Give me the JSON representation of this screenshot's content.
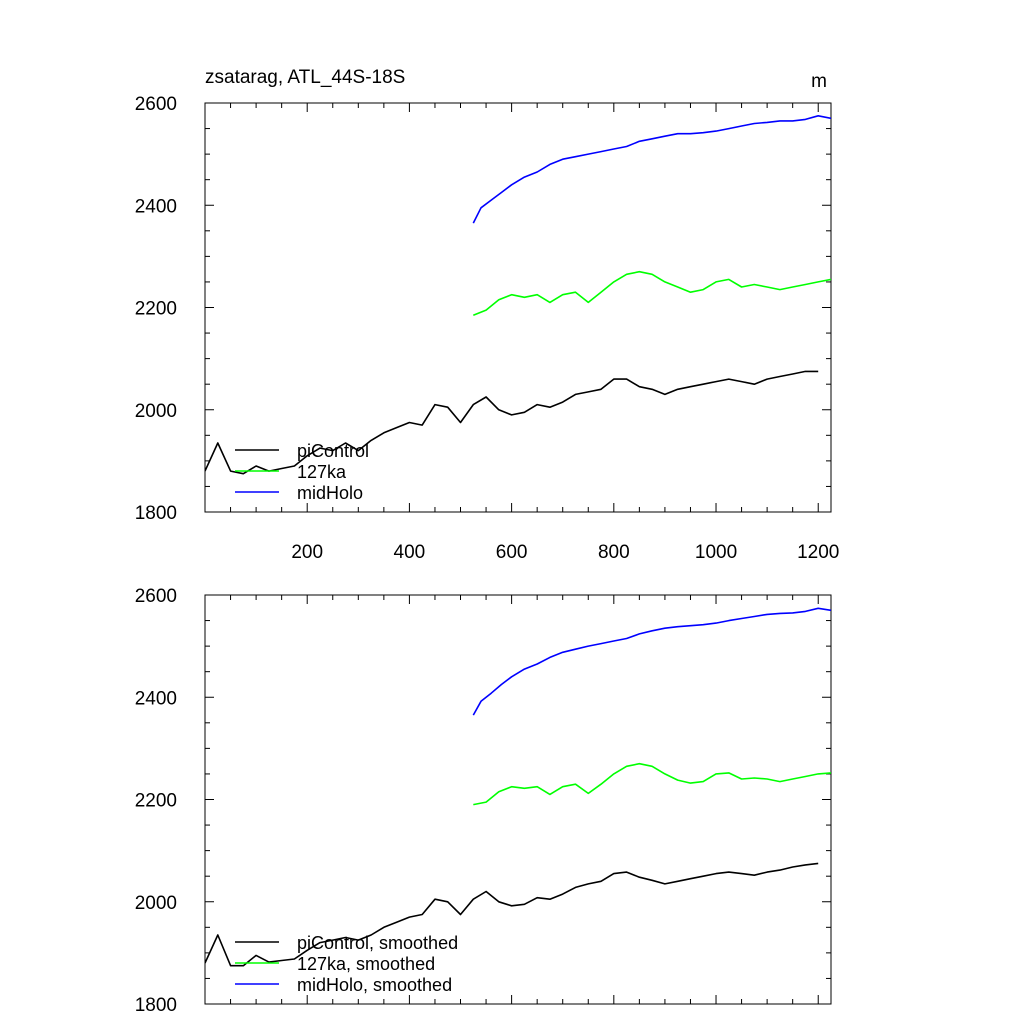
{
  "chart_data": [
    {
      "type": "line",
      "title": "zsatarag, ATL_44S-18S",
      "units": "m",
      "xlim": [
        0,
        1225
      ],
      "ylim": [
        1800,
        2600
      ],
      "xticks": [
        200,
        400,
        600,
        800,
        1000,
        1200
      ],
      "xtick_labels": [
        "200",
        "400",
        "600",
        "800",
        "1000",
        "1200"
      ],
      "yticks": [
        1800,
        2000,
        2200,
        2400,
        2600
      ],
      "ytick_labels": [
        "1800",
        "2000",
        "2200",
        "2400",
        "2600"
      ],
      "legend_position": "bottom-left",
      "series": [
        {
          "name": "piControl",
          "color": "#000000",
          "x": [
            0,
            25,
            50,
            75,
            100,
            125,
            150,
            175,
            200,
            225,
            250,
            275,
            300,
            325,
            350,
            375,
            400,
            425,
            450,
            475,
            500,
            525,
            550,
            575,
            600,
            625,
            650,
            675,
            700,
            725,
            750,
            775,
            800,
            825,
            850,
            875,
            900,
            925,
            950,
            975,
            1000,
            1025,
            1050,
            1075,
            1100,
            1125,
            1150,
            1175,
            1200
          ],
          "y": [
            1880,
            1935,
            1880,
            1875,
            1890,
            1880,
            1885,
            1890,
            1910,
            1925,
            1920,
            1935,
            1920,
            1940,
            1955,
            1965,
            1975,
            1970,
            2010,
            2005,
            1975,
            2010,
            2025,
            2000,
            1990,
            1995,
            2010,
            2005,
            2015,
            2030,
            2035,
            2040,
            2060,
            2060,
            2045,
            2040,
            2030,
            2040,
            2045,
            2050,
            2055,
            2060,
            2055,
            2050,
            2060,
            2065,
            2070,
            2075,
            2075
          ]
        },
        {
          "name": "127ka",
          "color": "#00ff00",
          "x": [
            525,
            550,
            575,
            600,
            625,
            650,
            675,
            700,
            725,
            750,
            775,
            800,
            825,
            850,
            875,
            900,
            925,
            950,
            975,
            1000,
            1025,
            1050,
            1075,
            1100,
            1125,
            1150,
            1175,
            1200,
            1225
          ],
          "y": [
            2185,
            2195,
            2215,
            2225,
            2220,
            2225,
            2210,
            2225,
            2230,
            2210,
            2230,
            2250,
            2265,
            2270,
            2265,
            2250,
            2240,
            2230,
            2235,
            2250,
            2255,
            2240,
            2245,
            2240,
            2235,
            2240,
            2245,
            2250,
            2255
          ]
        },
        {
          "name": "midHolo",
          "color": "#0000ff",
          "x": [
            525,
            540,
            560,
            580,
            600,
            625,
            650,
            675,
            700,
            725,
            750,
            775,
            800,
            825,
            850,
            875,
            900,
            925,
            950,
            975,
            1000,
            1025,
            1050,
            1075,
            1100,
            1125,
            1150,
            1175,
            1200,
            1225
          ],
          "y": [
            2365,
            2395,
            2410,
            2425,
            2440,
            2455,
            2465,
            2480,
            2490,
            2495,
            2500,
            2505,
            2510,
            2515,
            2525,
            2530,
            2535,
            2540,
            2540,
            2542,
            2545,
            2550,
            2555,
            2560,
            2562,
            2565,
            2565,
            2568,
            2575,
            2570
          ]
        }
      ]
    },
    {
      "type": "line",
      "title": "",
      "xlim": [
        0,
        1225
      ],
      "ylim": [
        1800,
        2600
      ],
      "yticks": [
        1800,
        2000,
        2200,
        2400,
        2600
      ],
      "ytick_labels": [
        "1800",
        "2000",
        "2200",
        "2400",
        "2600"
      ],
      "legend_position": "bottom-left",
      "series": [
        {
          "name": "piControl, smoothed",
          "color": "#000000",
          "x": [
            0,
            25,
            50,
            75,
            100,
            125,
            150,
            175,
            200,
            225,
            250,
            275,
            300,
            325,
            350,
            375,
            400,
            425,
            450,
            475,
            500,
            525,
            550,
            575,
            600,
            625,
            650,
            675,
            700,
            725,
            750,
            775,
            800,
            825,
            850,
            875,
            900,
            925,
            950,
            975,
            1000,
            1025,
            1050,
            1075,
            1100,
            1125,
            1150,
            1175,
            1200
          ],
          "y": [
            1880,
            1935,
            1875,
            1875,
            1895,
            1882,
            1885,
            1888,
            1905,
            1920,
            1925,
            1930,
            1925,
            1935,
            1950,
            1960,
            1970,
            1975,
            2005,
            2000,
            1975,
            2005,
            2020,
            2000,
            1992,
            1995,
            2008,
            2005,
            2015,
            2028,
            2035,
            2040,
            2055,
            2058,
            2048,
            2042,
            2035,
            2040,
            2045,
            2050,
            2055,
            2058,
            2055,
            2052,
            2058,
            2062,
            2068,
            2072,
            2075
          ]
        },
        {
          "name": "127ka, smoothed",
          "color": "#00ff00",
          "x": [
            525,
            550,
            575,
            600,
            625,
            650,
            675,
            700,
            725,
            750,
            775,
            800,
            825,
            850,
            875,
            900,
            925,
            950,
            975,
            1000,
            1025,
            1050,
            1075,
            1100,
            1125,
            1150,
            1175,
            1200,
            1225
          ],
          "y": [
            2190,
            2195,
            2215,
            2225,
            2222,
            2225,
            2210,
            2225,
            2230,
            2212,
            2230,
            2250,
            2265,
            2270,
            2265,
            2250,
            2238,
            2232,
            2235,
            2250,
            2252,
            2240,
            2242,
            2240,
            2235,
            2240,
            2245,
            2250,
            2252
          ]
        },
        {
          "name": "midHolo, smoothed",
          "color": "#0000ff",
          "x": [
            525,
            540,
            560,
            580,
            600,
            625,
            650,
            675,
            700,
            725,
            750,
            775,
            800,
            825,
            850,
            875,
            900,
            925,
            950,
            975,
            1000,
            1025,
            1050,
            1075,
            1100,
            1125,
            1150,
            1175,
            1200,
            1225
          ],
          "y": [
            2365,
            2392,
            2408,
            2425,
            2440,
            2455,
            2465,
            2478,
            2488,
            2494,
            2500,
            2505,
            2510,
            2515,
            2524,
            2530,
            2535,
            2538,
            2540,
            2542,
            2545,
            2550,
            2554,
            2558,
            2562,
            2564,
            2565,
            2568,
            2574,
            2570
          ]
        }
      ]
    }
  ]
}
